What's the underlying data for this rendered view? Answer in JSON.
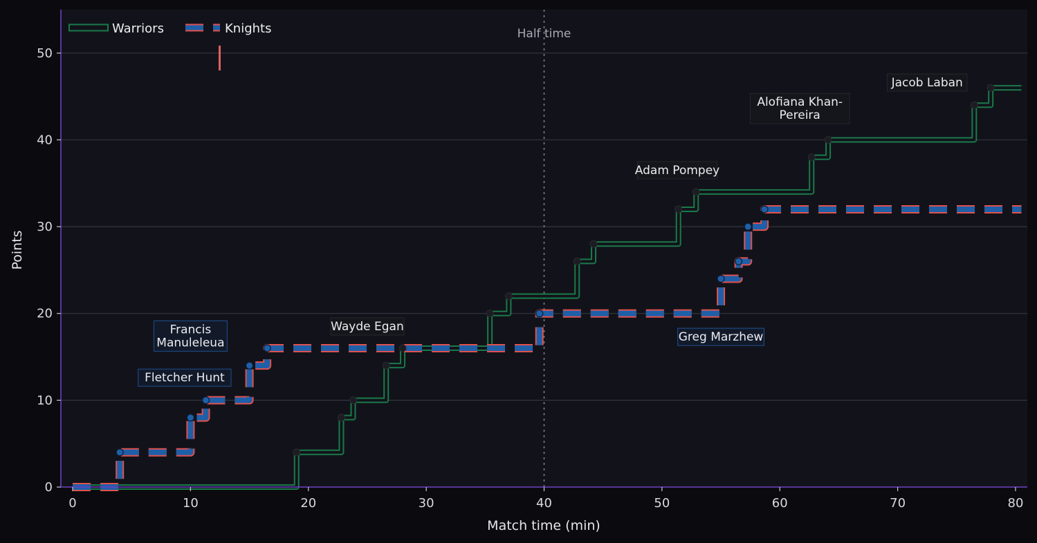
{
  "chart_data": {
    "type": "line",
    "subtype": "step",
    "xlabel": "Match time (min)",
    "ylabel": "Points",
    "xlim": [
      -1,
      81
    ],
    "ylim": [
      0,
      55
    ],
    "xticks": [
      0,
      10,
      20,
      30,
      40,
      50,
      60,
      70,
      80
    ],
    "yticks": [
      0,
      10,
      20,
      30,
      40,
      50
    ],
    "grid": "horizontal",
    "legend_position": "top-left",
    "vline": {
      "x": 40,
      "label": "Half time"
    },
    "series": [
      {
        "name": "Warriors",
        "color": "#1a7a4a",
        "style": "solid",
        "points": [
          [
            0,
            0
          ],
          [
            19,
            4
          ],
          [
            22.8,
            8
          ],
          [
            23.8,
            10
          ],
          [
            26.6,
            14
          ],
          [
            28,
            16
          ],
          [
            35.4,
            20
          ],
          [
            37,
            22
          ],
          [
            42.8,
            26
          ],
          [
            44.2,
            28
          ],
          [
            51.4,
            32
          ],
          [
            52.9,
            34
          ],
          [
            62.7,
            38
          ],
          [
            64.1,
            40
          ],
          [
            76.5,
            44
          ],
          [
            77.9,
            46
          ],
          [
            80.5,
            46
          ]
        ]
      },
      {
        "name": "Knights",
        "color": "#1f5fa8",
        "edge_color": "#e0524f",
        "style": "dashed",
        "points": [
          [
            0,
            0
          ],
          [
            4,
            4
          ],
          [
            10,
            8
          ],
          [
            11.3,
            10
          ],
          [
            15,
            14
          ],
          [
            16.5,
            16
          ],
          [
            39.6,
            20
          ],
          [
            55,
            24
          ],
          [
            56.5,
            26
          ],
          [
            57.3,
            30
          ],
          [
            58.7,
            32
          ],
          [
            80.5,
            32
          ]
        ]
      }
    ],
    "markers": {
      "Warriors": [
        [
          19,
          4
        ],
        [
          22.8,
          8
        ],
        [
          23.8,
          10
        ],
        [
          26.6,
          14
        ],
        [
          28,
          16
        ],
        [
          35.4,
          20
        ],
        [
          37,
          22
        ],
        [
          42.8,
          26
        ],
        [
          44.2,
          28
        ],
        [
          51.4,
          32
        ],
        [
          52.9,
          34
        ],
        [
          62.7,
          38
        ],
        [
          64.1,
          40
        ],
        [
          76.5,
          44
        ],
        [
          77.9,
          46
        ]
      ],
      "Knights": [
        [
          4,
          4
        ],
        [
          10,
          8
        ],
        [
          11.3,
          10
        ],
        [
          15,
          14
        ],
        [
          16.5,
          16
        ],
        [
          39.6,
          20
        ],
        [
          55,
          24
        ],
        [
          56.5,
          26
        ],
        [
          57.3,
          30
        ],
        [
          58.7,
          32
        ]
      ]
    },
    "annotations": [
      {
        "text": "Fletcher Hunt",
        "x": 9.5,
        "y": 12.6,
        "team": "Knights"
      },
      {
        "text": "Francis\nManuleleua",
        "x": 10,
        "y": 17.4,
        "team": "Knights"
      },
      {
        "text": "Wayde Egan",
        "x": 25,
        "y": 18.5,
        "team": "Warriors"
      },
      {
        "text": "Adam Pompey",
        "x": 51.3,
        "y": 36.5,
        "team": "Warriors"
      },
      {
        "text": "Greg Marzhew",
        "x": 55,
        "y": 17.3,
        "team": "Knights"
      },
      {
        "text": "Alofiana Khan-\nPereira",
        "x": 61.7,
        "y": 43.6,
        "team": "Warriors"
      },
      {
        "text": "Jacob Laban",
        "x": 72.5,
        "y": 46.6,
        "team": "Warriors"
      }
    ]
  },
  "colors": {
    "page_bg": "#0b0b0f",
    "plot_bg": "#12131a",
    "grid": "#34353d",
    "axis_spine": "#6b3fc2",
    "warriors": "#1a7a4a",
    "knights_fill": "#1f5fa8",
    "knights_edge": "#e0524f",
    "marker_warriors": "#1c1d22",
    "half_time_line": "#7c7d88"
  }
}
